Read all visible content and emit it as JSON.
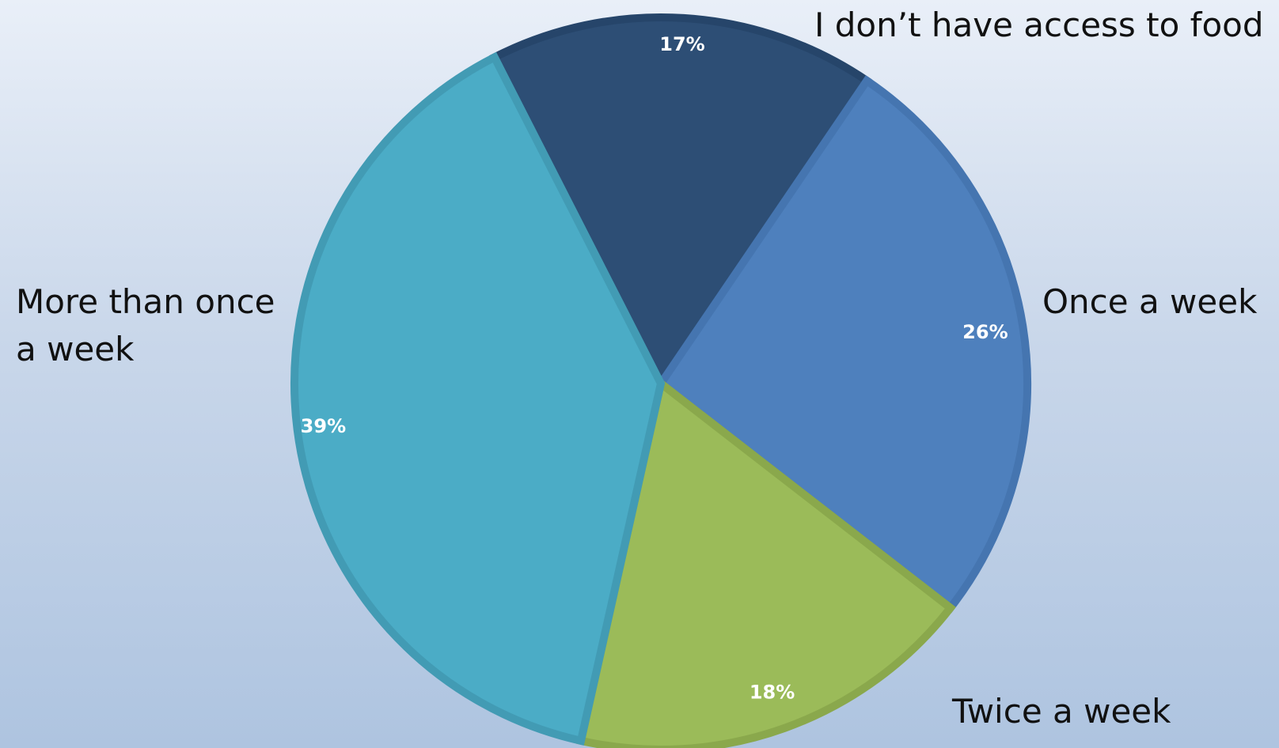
{
  "chart_data": {
    "type": "pie",
    "categories": [
      "I don’t have access to food",
      "Once a week",
      "Twice a week",
      "More than once a week"
    ],
    "values": [
      17,
      26,
      18,
      39
    ],
    "value_labels": [
      "17%",
      "26%",
      "18%",
      "39%"
    ],
    "unit": "%",
    "colors": [
      "#2d4e75",
      "#4e80bd",
      "#9bbb59",
      "#4bacc6"
    ],
    "border_colors": [
      "#26456a",
      "#4575b0",
      "#8aa84c",
      "#429bb4"
    ],
    "start_angle_deg": -27,
    "direction": "clockwise",
    "legend": "none",
    "title": ""
  }
}
